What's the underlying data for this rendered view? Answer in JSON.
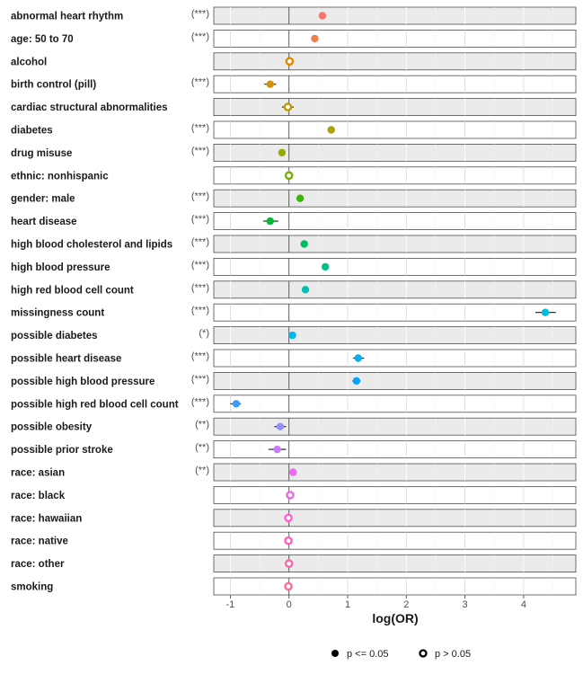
{
  "chart_data": {
    "type": "scatter",
    "subtype": "forest-plot",
    "xlabel": "log(OR)",
    "xlim": [
      -1.25,
      4.9
    ],
    "xticks": [
      -1,
      0,
      1,
      2,
      3,
      4
    ],
    "grid": true,
    "legend": {
      "placement": "bottom-center",
      "entries": [
        {
          "label": "p <= 0.05",
          "marker": "filled"
        },
        {
          "label": "p > 0.05",
          "marker": "hollow"
        }
      ]
    },
    "rows": [
      {
        "label": "abnormal heart rhythm",
        "sig": "(***)",
        "est": 0.57,
        "lo": 0.57,
        "hi": 0.57,
        "significant": true,
        "color": "#F8766D"
      },
      {
        "label": "age: 50 to 70",
        "sig": "(***)",
        "est": 0.44,
        "lo": 0.38,
        "hi": 0.5,
        "significant": true,
        "color": "#F07F4E"
      },
      {
        "label": "alcohol",
        "sig": "",
        "est": 0.01,
        "lo": 0.01,
        "hi": 0.01,
        "significant": false,
        "color": "#E48800"
      },
      {
        "label": "birth control (pill)",
        "sig": "(***)",
        "est": -0.32,
        "lo": -0.42,
        "hi": -0.22,
        "significant": true,
        "color": "#D3920A"
      },
      {
        "label": "cardiac structural abnormalities",
        "sig": "",
        "est": -0.02,
        "lo": -0.12,
        "hi": 0.08,
        "significant": false,
        "color": "#C19A00"
      },
      {
        "label": "diabetes",
        "sig": "(***)",
        "est": 0.72,
        "lo": 0.66,
        "hi": 0.78,
        "significant": true,
        "color": "#ADA200"
      },
      {
        "label": "drug misuse",
        "sig": "(***)",
        "est": -0.12,
        "lo": -0.12,
        "hi": -0.12,
        "significant": true,
        "color": "#95A900"
      },
      {
        "label": "ethnic: nonhispanic",
        "sig": "",
        "est": 0.0,
        "lo": 0.0,
        "hi": 0.0,
        "significant": false,
        "color": "#75AF00"
      },
      {
        "label": "gender: male",
        "sig": "(***)",
        "est": 0.19,
        "lo": 0.19,
        "hi": 0.19,
        "significant": true,
        "color": "#39B600"
      },
      {
        "label": "heart disease",
        "sig": "(***)",
        "est": -0.32,
        "lo": -0.44,
        "hi": -0.18,
        "significant": true,
        "color": "#00BA38"
      },
      {
        "label": "high blood cholesterol and lipids",
        "sig": "(***)",
        "est": 0.26,
        "lo": 0.26,
        "hi": 0.26,
        "significant": true,
        "color": "#00BD60"
      },
      {
        "label": "high blood pressure",
        "sig": "(***)",
        "est": 0.62,
        "lo": 0.62,
        "hi": 0.62,
        "significant": true,
        "color": "#00C08B"
      },
      {
        "label": "high red blood cell count",
        "sig": "(***)",
        "est": 0.28,
        "lo": 0.28,
        "hi": 0.28,
        "significant": true,
        "color": "#00BFAE"
      },
      {
        "label": "missingness count",
        "sig": "(***)",
        "est": 4.37,
        "lo": 4.2,
        "hi": 4.55,
        "significant": true,
        "color": "#00BCD6"
      },
      {
        "label": "possible diabetes",
        "sig": "(*)",
        "est": 0.06,
        "lo": 0.06,
        "hi": 0.06,
        "significant": true,
        "color": "#00B8E7"
      },
      {
        "label": "possible heart disease",
        "sig": "(***)",
        "est": 1.18,
        "lo": 1.09,
        "hi": 1.28,
        "significant": true,
        "color": "#00B0F6"
      },
      {
        "label": "possible high blood pressure",
        "sig": "(***)",
        "est": 1.15,
        "lo": 1.08,
        "hi": 1.22,
        "significant": true,
        "color": "#00A5FF"
      },
      {
        "label": "possible high red blood cell count",
        "sig": "(***)",
        "est": -0.9,
        "lo": -1.0,
        "hi": -0.82,
        "significant": true,
        "color": "#3D9CFF"
      },
      {
        "label": "possible obesity",
        "sig": "(**)",
        "est": -0.15,
        "lo": -0.25,
        "hi": -0.05,
        "significant": true,
        "color": "#9590FF"
      },
      {
        "label": "possible prior stroke",
        "sig": "(**)",
        "est": -0.2,
        "lo": -0.35,
        "hi": -0.05,
        "significant": true,
        "color": "#C77CFF"
      },
      {
        "label": "race: asian",
        "sig": "(**)",
        "est": 0.07,
        "lo": 0.07,
        "hi": 0.07,
        "significant": true,
        "color": "#E76BF3"
      },
      {
        "label": "race: black",
        "sig": "",
        "est": 0.02,
        "lo": 0.02,
        "hi": 0.02,
        "significant": false,
        "color": "#F564E3"
      },
      {
        "label": "race: hawaiian",
        "sig": "",
        "est": -0.01,
        "lo": -0.01,
        "hi": -0.01,
        "significant": false,
        "color": "#FD61D1"
      },
      {
        "label": "race: native",
        "sig": "",
        "est": -0.01,
        "lo": -0.01,
        "hi": -0.01,
        "significant": false,
        "color": "#FF62BC"
      },
      {
        "label": "race: other",
        "sig": "",
        "est": 0.0,
        "lo": 0.0,
        "hi": 0.0,
        "significant": false,
        "color": "#FF65AC"
      },
      {
        "label": "smoking",
        "sig": "",
        "est": -0.01,
        "lo": -0.01,
        "hi": -0.01,
        "significant": false,
        "color": "#FF6C91"
      }
    ]
  }
}
